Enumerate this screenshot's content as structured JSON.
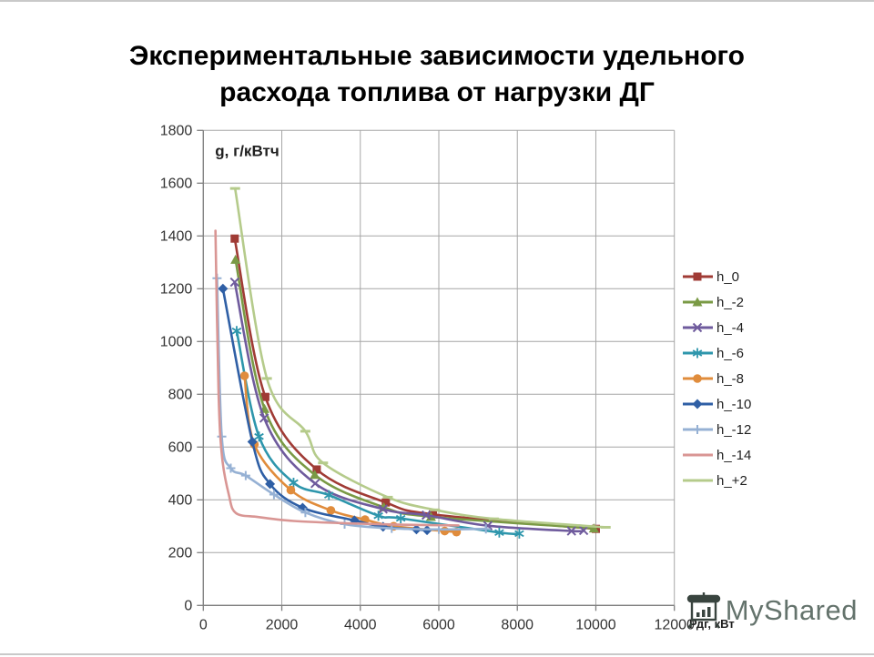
{
  "slide": {
    "title_line1": "Экспериментальные зависимости удельного",
    "title_line2": "расхода топлива от нагрузки ДГ"
  },
  "watermark": {
    "text": "MyShared",
    "logo_icon": "projector-screen-chart-icon"
  },
  "chart_data": {
    "type": "line",
    "title": "Экспериментальные зависимости удельного расхода топлива от нагрузки ДГ",
    "ylabel": "g, г/кВтч",
    "xlabel": "Рдг, кВт",
    "xlim": [
      0,
      12000
    ],
    "ylim": [
      0,
      1800
    ],
    "x_ticks": [
      0,
      2000,
      4000,
      6000,
      8000,
      10000,
      12000
    ],
    "y_ticks": [
      0,
      200,
      400,
      600,
      800,
      1000,
      1200,
      1400,
      1600,
      1800
    ],
    "grid": true,
    "legend_position": "right",
    "grid_color": "#a6a6a6",
    "axis_text_color": "#333333",
    "series": [
      {
        "name": "h_0",
        "color": "#a03b35",
        "marker": "square",
        "points": [
          [
            800,
            1390
          ],
          [
            1580,
            790
          ],
          [
            2890,
            515
          ],
          [
            4650,
            390
          ],
          [
            5850,
            345
          ],
          [
            10000,
            290
          ]
        ]
      },
      {
        "name": "h_-2",
        "color": "#7a9a45",
        "marker": "triangle",
        "points": [
          [
            820,
            1310
          ],
          [
            1560,
            745
          ],
          [
            2840,
            495
          ],
          [
            4600,
            372
          ],
          [
            5800,
            336
          ],
          [
            9950,
            292
          ]
        ]
      },
      {
        "name": "h_-4",
        "color": "#6f5b9d",
        "marker": "x",
        "points": [
          [
            800,
            1225
          ],
          [
            1550,
            710
          ],
          [
            2850,
            462
          ],
          [
            4580,
            365
          ],
          [
            5680,
            342
          ],
          [
            7250,
            302
          ],
          [
            9380,
            282
          ],
          [
            9690,
            284
          ]
        ]
      },
      {
        "name": "h_-6",
        "color": "#2e96ac",
        "marker": "asterisk",
        "points": [
          [
            850,
            1040
          ],
          [
            1420,
            640
          ],
          [
            2300,
            465
          ],
          [
            3200,
            418
          ],
          [
            4460,
            340
          ],
          [
            5030,
            330
          ],
          [
            7540,
            276
          ],
          [
            8050,
            272
          ]
        ]
      },
      {
        "name": "h_-8",
        "color": "#e08c3c",
        "marker": "circle",
        "points": [
          [
            1050,
            870
          ],
          [
            1300,
            610
          ],
          [
            2230,
            437
          ],
          [
            3250,
            360
          ],
          [
            4120,
            325
          ],
          [
            4850,
            300
          ],
          [
            6150,
            282
          ],
          [
            6450,
            278
          ]
        ]
      },
      {
        "name": "h_-10",
        "color": "#2f5fa5",
        "marker": "diamond",
        "points": [
          [
            500,
            1200
          ],
          [
            1250,
            620
          ],
          [
            1700,
            460
          ],
          [
            2530,
            370
          ],
          [
            3850,
            322
          ],
          [
            4580,
            298
          ],
          [
            5430,
            288
          ],
          [
            5700,
            285
          ]
        ]
      },
      {
        "name": "h_-12",
        "color": "#96b1d4",
        "marker": "plus",
        "points": [
          [
            350,
            1240
          ],
          [
            470,
            640
          ],
          [
            700,
            520
          ],
          [
            1080,
            492
          ],
          [
            1800,
            420
          ],
          [
            2600,
            352
          ],
          [
            3600,
            308
          ],
          [
            4800,
            292
          ],
          [
            6000,
            288
          ],
          [
            7200,
            290
          ]
        ]
      },
      {
        "name": "h_-14",
        "color": "#d99694",
        "marker": "none",
        "points": [
          [
            310,
            1420
          ],
          [
            390,
            800
          ],
          [
            480,
            560
          ],
          [
            650,
            420
          ],
          [
            830,
            350
          ],
          [
            1400,
            335
          ],
          [
            2300,
            320
          ],
          [
            3500,
            312
          ],
          [
            5000,
            306
          ],
          [
            6500,
            303
          ]
        ]
      },
      {
        "name": "h_+2",
        "color": "#b5cb8b",
        "marker": "dash",
        "points": [
          [
            810,
            1580
          ],
          [
            1620,
            860
          ],
          [
            2600,
            660
          ],
          [
            3050,
            540
          ],
          [
            4700,
            410
          ],
          [
            5900,
            362
          ],
          [
            7400,
            328
          ],
          [
            10250,
            296
          ]
        ]
      }
    ]
  }
}
